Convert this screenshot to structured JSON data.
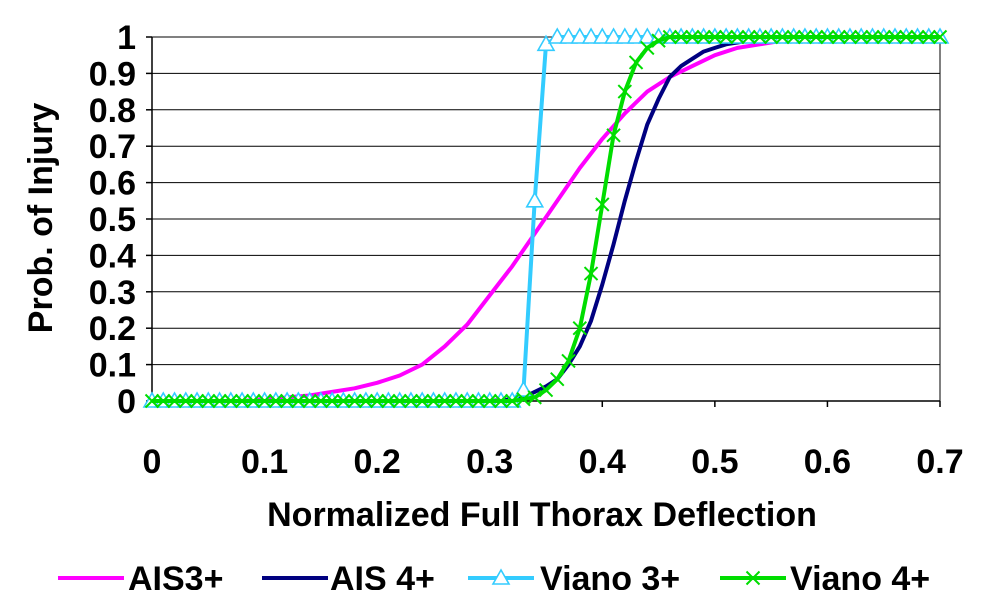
{
  "chart_data": {
    "type": "line",
    "title": "",
    "xlabel": "Normalized Full Thorax Deflection",
    "ylabel": "Prob. of Injury",
    "xlim": [
      0,
      0.7
    ],
    "ylim": [
      0,
      1
    ],
    "x_ticks": [
      "0",
      "0.1",
      "0.2",
      "0.3",
      "0.4",
      "0.5",
      "0.6",
      "0.7"
    ],
    "y_ticks": [
      "0",
      "0.1",
      "0.2",
      "0.3",
      "0.4",
      "0.5",
      "0.6",
      "0.7",
      "0.8",
      "0.9",
      "1"
    ],
    "grid": "horizontal",
    "legend_position": "bottom",
    "series": [
      {
        "name": "AIS3+",
        "color": "#ff00ff",
        "marker": "none",
        "x": [
          0,
          0.02,
          0.04,
          0.06,
          0.08,
          0.1,
          0.12,
          0.14,
          0.16,
          0.18,
          0.2,
          0.22,
          0.24,
          0.26,
          0.28,
          0.3,
          0.32,
          0.34,
          0.36,
          0.38,
          0.4,
          0.42,
          0.44,
          0.46,
          0.48,
          0.5,
          0.52,
          0.54,
          0.56,
          0.58,
          0.6,
          0.62,
          0.64,
          0.66,
          0.68,
          0.7
        ],
        "y": [
          0,
          0,
          0,
          0,
          0,
          0.005,
          0.01,
          0.015,
          0.025,
          0.035,
          0.05,
          0.07,
          0.1,
          0.15,
          0.21,
          0.29,
          0.37,
          0.46,
          0.55,
          0.64,
          0.72,
          0.79,
          0.85,
          0.89,
          0.92,
          0.95,
          0.97,
          0.98,
          0.99,
          0.995,
          1,
          1,
          1,
          1,
          1,
          1
        ]
      },
      {
        "name": "AIS 4+",
        "color": "#000080",
        "marker": "none",
        "x": [
          0,
          0.05,
          0.1,
          0.15,
          0.2,
          0.25,
          0.3,
          0.32,
          0.33,
          0.34,
          0.35,
          0.36,
          0.37,
          0.38,
          0.39,
          0.4,
          0.41,
          0.42,
          0.43,
          0.44,
          0.45,
          0.46,
          0.47,
          0.48,
          0.49,
          0.5,
          0.51,
          0.52,
          0.53,
          0.54,
          0.56,
          0.6,
          0.65,
          0.7
        ],
        "y": [
          0,
          0,
          0,
          0,
          0,
          0,
          0,
          0.005,
          0.01,
          0.025,
          0.04,
          0.06,
          0.1,
          0.15,
          0.22,
          0.32,
          0.43,
          0.55,
          0.66,
          0.76,
          0.83,
          0.89,
          0.92,
          0.94,
          0.96,
          0.97,
          0.98,
          0.985,
          0.99,
          0.995,
          1,
          1,
          1,
          1
        ]
      },
      {
        "name": "Viano 3+",
        "color": "#33ccff",
        "marker": "triangle",
        "x": [
          0,
          0.01,
          0.02,
          0.03,
          0.04,
          0.05,
          0.06,
          0.07,
          0.08,
          0.09,
          0.1,
          0.11,
          0.12,
          0.13,
          0.14,
          0.15,
          0.16,
          0.17,
          0.18,
          0.19,
          0.2,
          0.21,
          0.22,
          0.23,
          0.24,
          0.25,
          0.26,
          0.27,
          0.28,
          0.29,
          0.3,
          0.31,
          0.32,
          0.33,
          0.34,
          0.35,
          0.36,
          0.37,
          0.38,
          0.39,
          0.4,
          0.41,
          0.42,
          0.43,
          0.44,
          0.45,
          0.46,
          0.47,
          0.48,
          0.49,
          0.5,
          0.51,
          0.52,
          0.53,
          0.54,
          0.55,
          0.56,
          0.57,
          0.58,
          0.59,
          0.6,
          0.61,
          0.62,
          0.63,
          0.64,
          0.65,
          0.66,
          0.67,
          0.68,
          0.69,
          0.7
        ],
        "y": [
          0,
          0,
          0,
          0,
          0,
          0,
          0,
          0,
          0,
          0,
          0,
          0,
          0,
          0,
          0,
          0,
          0,
          0,
          0,
          0,
          0,
          0,
          0,
          0,
          0,
          0,
          0,
          0,
          0,
          0,
          0,
          0,
          0,
          0.03,
          0.55,
          0.98,
          1,
          1,
          1,
          1,
          1,
          1,
          1,
          1,
          1,
          1,
          1,
          1,
          1,
          1,
          1,
          1,
          1,
          1,
          1,
          1,
          1,
          1,
          1,
          1,
          1,
          1,
          1,
          1,
          1,
          1,
          1,
          1,
          1,
          1,
          1
        ]
      },
      {
        "name": "Viano 4+",
        "color": "#00dd00",
        "marker": "x",
        "x": [
          0,
          0.01,
          0.02,
          0.03,
          0.04,
          0.05,
          0.06,
          0.07,
          0.08,
          0.09,
          0.1,
          0.11,
          0.12,
          0.13,
          0.14,
          0.15,
          0.16,
          0.17,
          0.18,
          0.19,
          0.2,
          0.21,
          0.22,
          0.23,
          0.24,
          0.25,
          0.26,
          0.27,
          0.28,
          0.29,
          0.3,
          0.31,
          0.32,
          0.33,
          0.34,
          0.35,
          0.36,
          0.37,
          0.38,
          0.39,
          0.4,
          0.41,
          0.42,
          0.43,
          0.44,
          0.45,
          0.46,
          0.47,
          0.48,
          0.49,
          0.5,
          0.51,
          0.52,
          0.53,
          0.54,
          0.55,
          0.56,
          0.57,
          0.58,
          0.59,
          0.6,
          0.61,
          0.62,
          0.63,
          0.64,
          0.65,
          0.66,
          0.67,
          0.68,
          0.69,
          0.7
        ],
        "y": [
          0,
          0,
          0,
          0,
          0,
          0,
          0,
          0,
          0,
          0,
          0,
          0,
          0,
          0,
          0,
          0,
          0,
          0,
          0,
          0,
          0,
          0,
          0,
          0,
          0,
          0,
          0,
          0,
          0,
          0,
          0,
          0,
          0,
          0.005,
          0.01,
          0.03,
          0.06,
          0.11,
          0.2,
          0.35,
          0.54,
          0.73,
          0.85,
          0.93,
          0.97,
          0.99,
          1,
          1,
          1,
          1,
          1,
          1,
          1,
          1,
          1,
          1,
          1,
          1,
          1,
          1,
          1,
          1,
          1,
          1,
          1,
          1,
          1,
          1,
          1,
          1,
          1
        ]
      }
    ]
  }
}
